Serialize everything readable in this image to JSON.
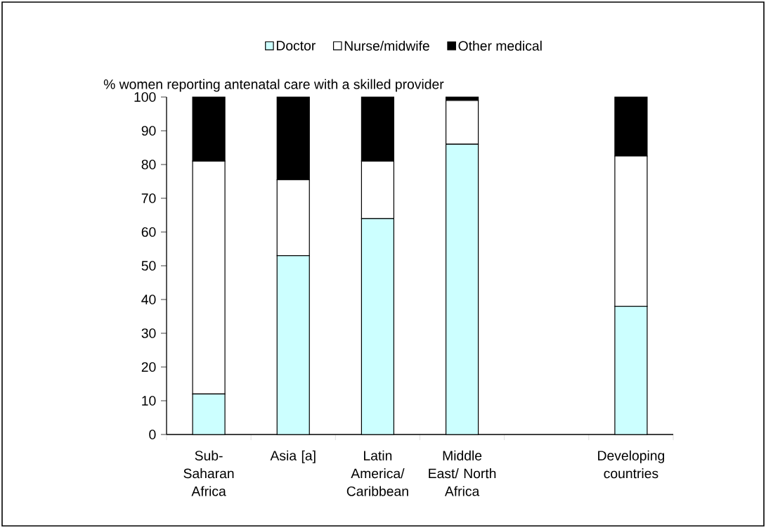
{
  "chart_data": {
    "type": "bar",
    "stacked": true,
    "ylabel": "% women reporting antenatal care with a skilled provider",
    "categories": [
      "Sub-Saharan Africa",
      "Asia [a]",
      "Latin America/ Caribbean",
      "Middle East/ North Africa",
      null,
      "Developing countries"
    ],
    "series": [
      {
        "name": "Doctor",
        "color": "#ccffff",
        "values": [
          12,
          53,
          64,
          86,
          null,
          38
        ]
      },
      {
        "name": "Nurse/midwife",
        "color": "#ffffff",
        "values": [
          69,
          22.5,
          17,
          13,
          null,
          44.5
        ]
      },
      {
        "name": "Other medical",
        "color": "#000000",
        "values": [
          19,
          24.5,
          19,
          1,
          null,
          17.5
        ]
      }
    ],
    "ylim": [
      0,
      100
    ],
    "yticks": [
      0,
      10,
      20,
      30,
      40,
      50,
      60,
      70,
      80,
      90,
      100
    ],
    "legend": "top",
    "grid": false
  }
}
